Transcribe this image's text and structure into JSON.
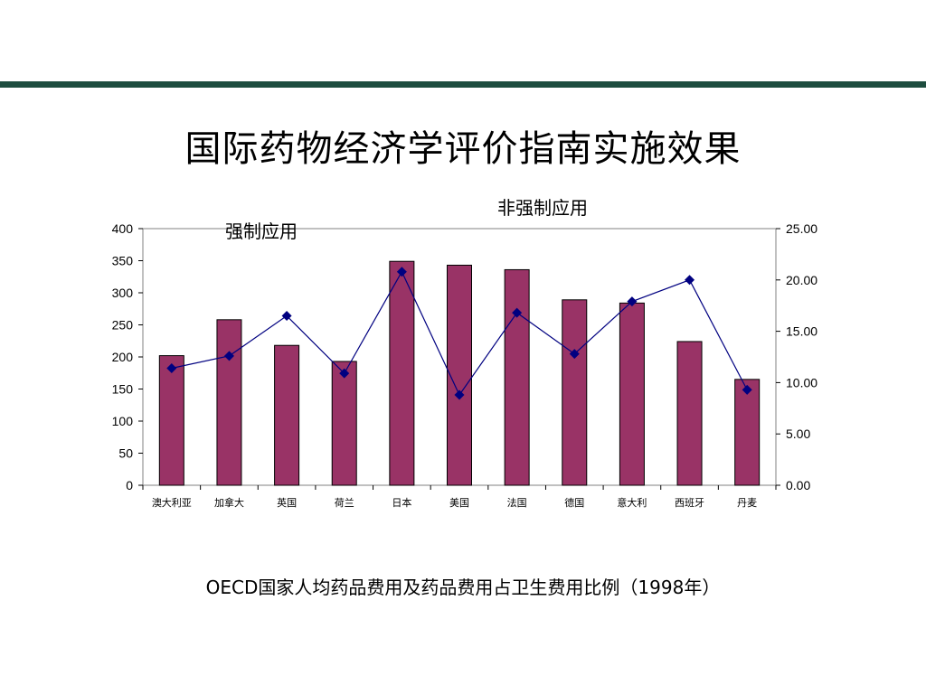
{
  "slide": {
    "title": "国际药物经济学评价指南实施效果",
    "caption": "OECD国家人均药品费用及药品费用占卫生费用比例（1998年）",
    "annotation_mandatory": "强制应用",
    "annotation_nonmandatory": "非强制应用"
  },
  "colors": {
    "rule": "#1e4d3f",
    "bar": "#993366",
    "line": "#000080"
  },
  "chart_data": {
    "type": "bar",
    "categories": [
      "澳大利亚",
      "加拿大",
      "英国",
      "荷兰",
      "日本",
      "美国",
      "法国",
      "德国",
      "意大利",
      "西班牙",
      "丹麦"
    ],
    "series": [
      {
        "type": "bar",
        "axis": "left",
        "values": [
          202,
          258,
          218,
          193,
          349,
          343,
          336,
          289,
          284,
          224,
          165
        ]
      },
      {
        "type": "line",
        "axis": "right",
        "marker": "diamond",
        "values": [
          11.4,
          12.6,
          16.5,
          10.9,
          20.8,
          8.8,
          16.8,
          12.8,
          17.9,
          20.0,
          9.3
        ]
      }
    ],
    "y_left": {
      "lim": [
        0,
        400
      ],
      "ticks": [
        "0",
        "50",
        "100",
        "150",
        "200",
        "250",
        "300",
        "350",
        "400"
      ]
    },
    "y_right": {
      "lim": [
        0,
        25
      ],
      "ticks": [
        "0.00",
        "5.00",
        "10.00",
        "15.00",
        "20.00",
        "25.00"
      ]
    },
    "grid": false,
    "legend": "none"
  }
}
